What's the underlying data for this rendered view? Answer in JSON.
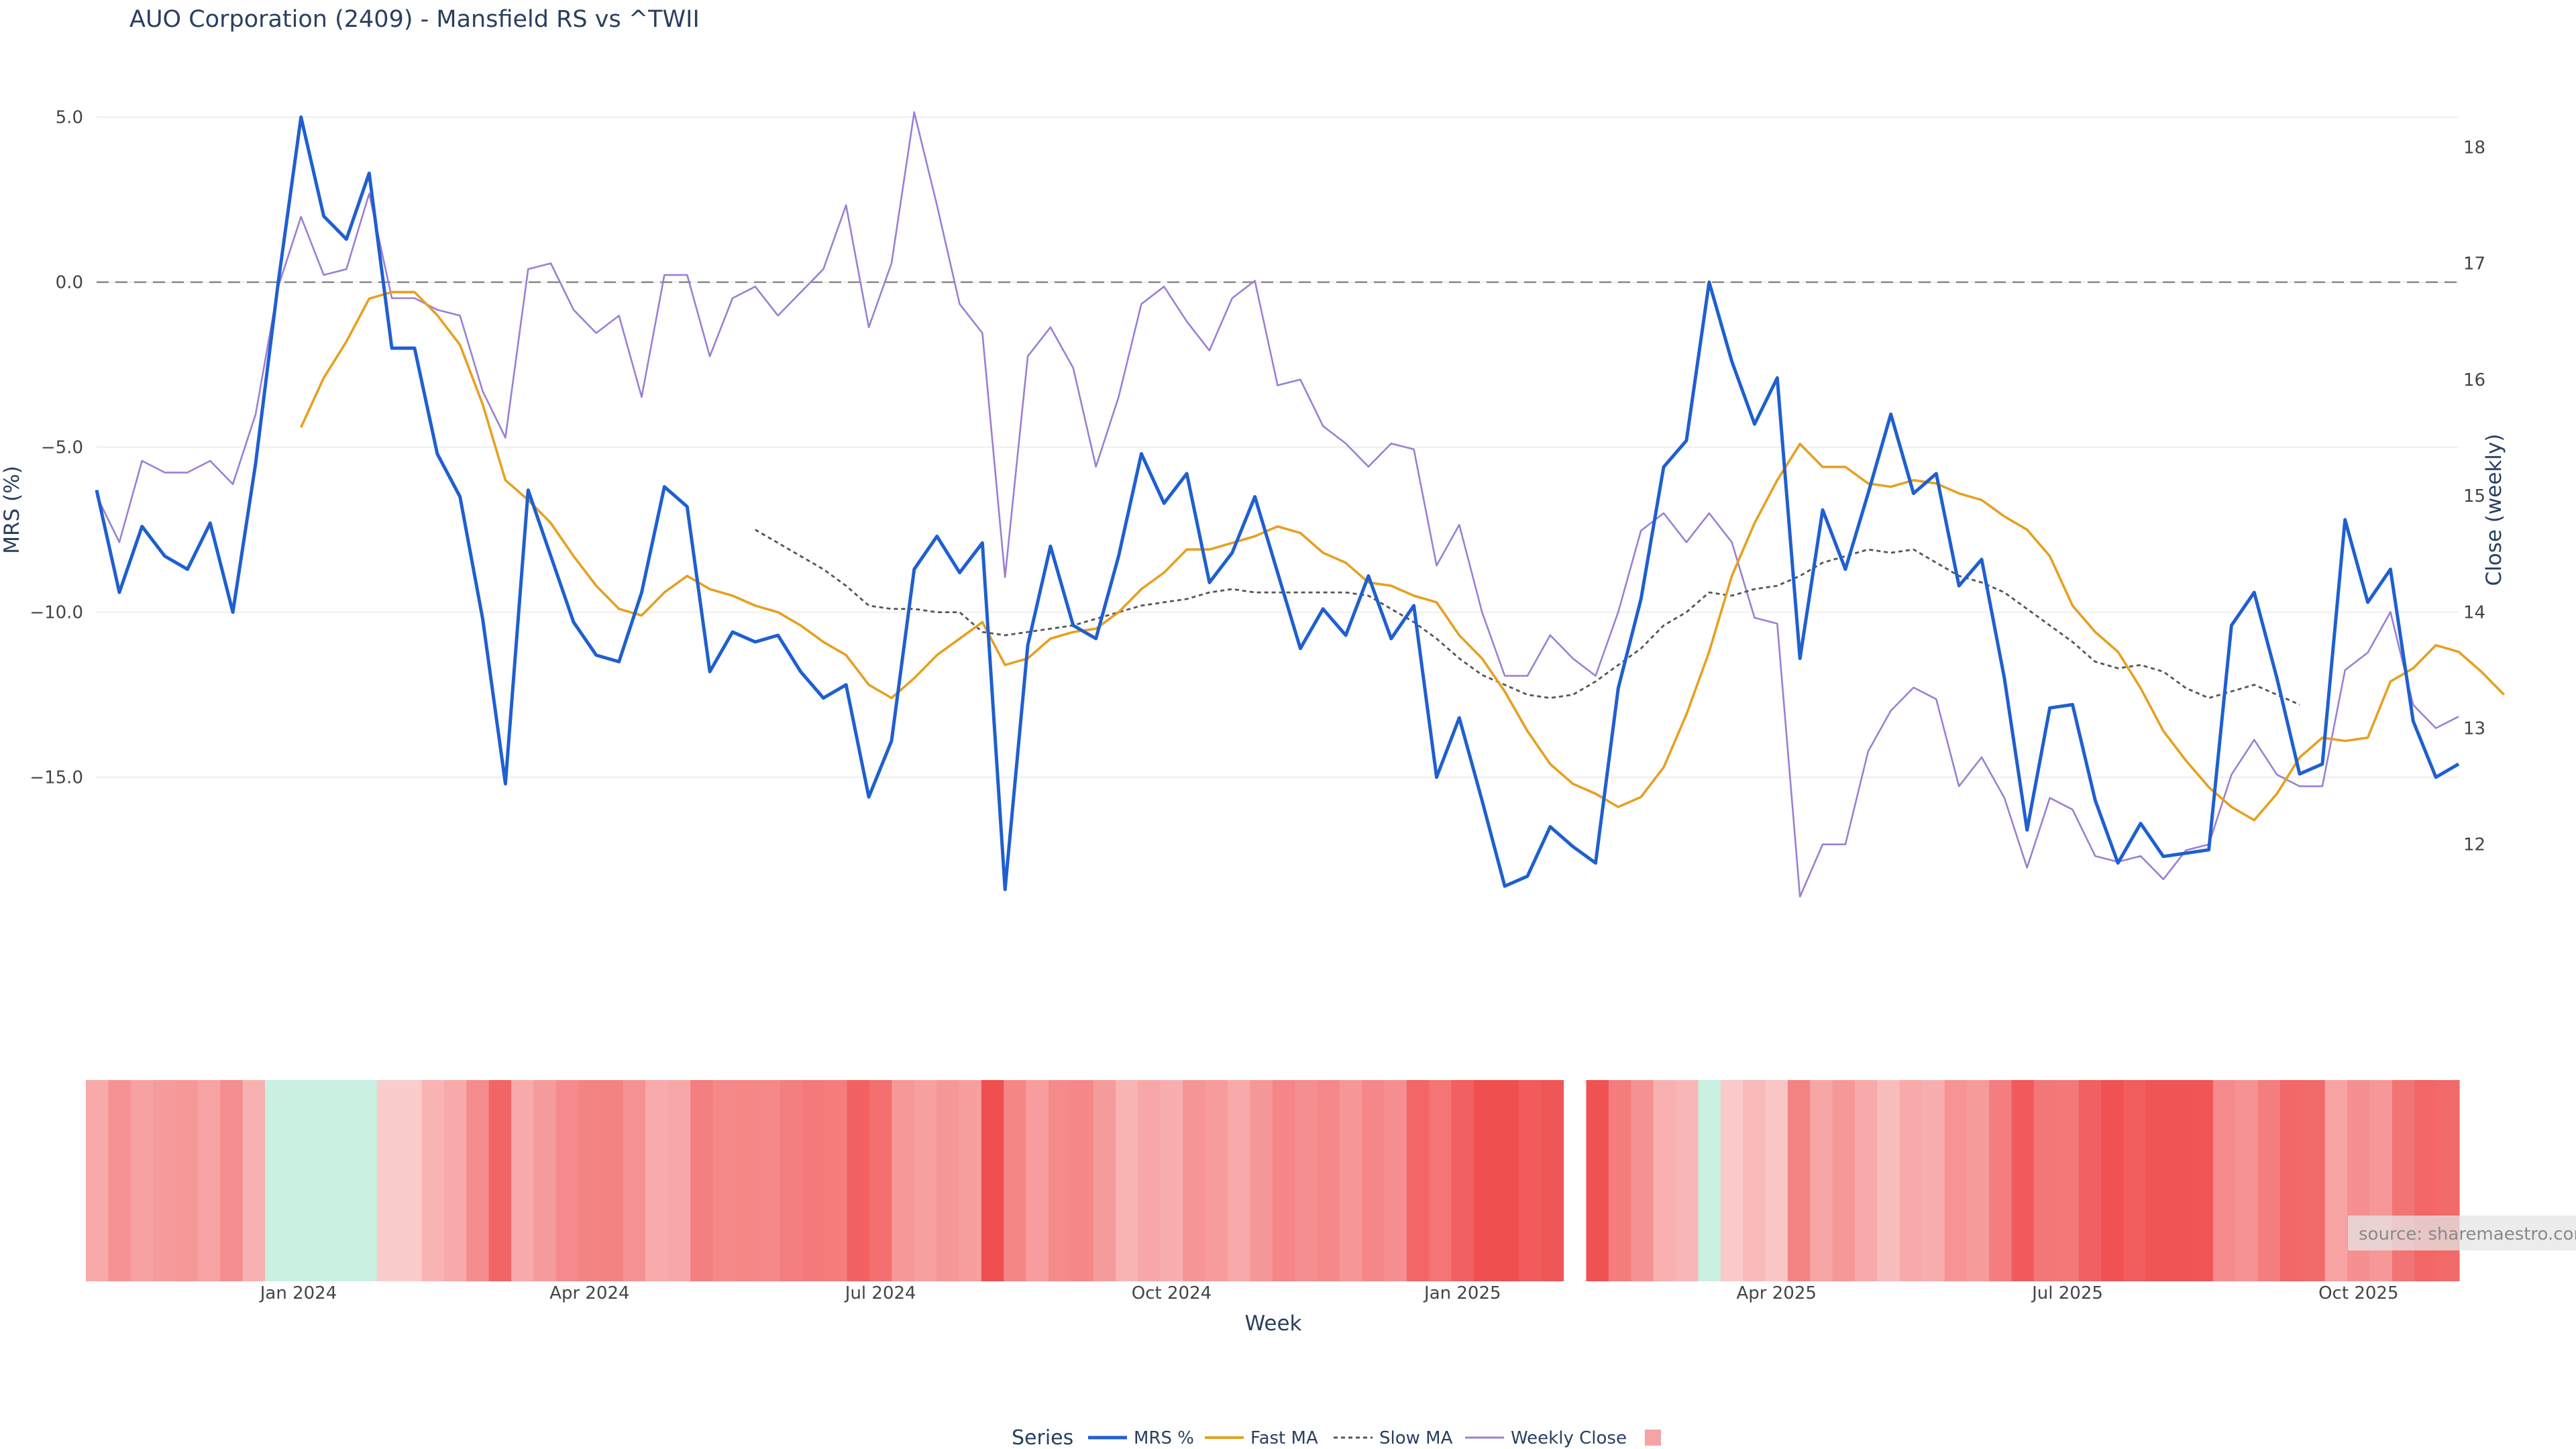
{
  "title": "AUO Corporation (2409) - Mansfield RS vs ^TWII",
  "source_label": "source: sharemaestro.com",
  "legend": {
    "title": "Series",
    "items": [
      "MRS %",
      "Fast MA",
      "Slow MA",
      "Weekly Close",
      ""
    ]
  },
  "colors": {
    "mrs": "#1f5fd0",
    "fast_ma": "#e6a020",
    "slow_ma": "#555555",
    "weekly_close": "#9b7fd4",
    "zero_line": "#888888"
  },
  "chart_data": {
    "type": "line",
    "title": "AUO Corporation (2409) - Mansfield RS vs ^TWII",
    "xlabel": "Week",
    "ylabel": "MRS (%)",
    "y2label": "Close (weekly)",
    "ylim": [
      -19.5,
      5.5
    ],
    "y2lim": [
      11.3,
      18.4
    ],
    "yticks": [
      5,
      0,
      -5,
      -10,
      -15
    ],
    "ytick_labels": [
      "5.0",
      "0.0",
      "−5.0",
      "−10.0",
      "−15.0"
    ],
    "y2ticks": [
      18,
      17,
      16,
      15,
      14,
      13,
      12
    ],
    "y2tick_labels": [
      "18",
      "17",
      "16",
      "15",
      "14",
      "13",
      "12"
    ],
    "x_tick_positions": [
      9,
      22,
      35,
      48,
      61,
      74,
      87,
      100
    ],
    "x_tick_labels": [
      "Jan 2024",
      "Apr 2024",
      "Jul 2024",
      "Oct 2024",
      "Jan 2025",
      "Apr 2025",
      "Jul 2025",
      "Oct 2025"
    ],
    "zero_line": 0,
    "series": [
      {
        "name": "MRS %",
        "axis": "left",
        "values": [
          -6.3,
          -9.4,
          -7.4,
          -8.3,
          -8.7,
          -7.3,
          -10.0,
          -5.5,
          0.0,
          5.0,
          2.0,
          1.3,
          3.3,
          -2.0,
          -2.0,
          -5.2,
          -6.5,
          -10.2,
          -15.2,
          -6.3,
          -8.3,
          -10.3,
          -11.3,
          -11.5,
          -9.4,
          -6.2,
          -6.8,
          -11.8,
          -10.6,
          -10.9,
          -10.7,
          -11.8,
          -12.6,
          -12.2,
          -15.6,
          -13.9,
          -8.7,
          -7.7,
          -8.8,
          -7.9,
          -18.4,
          -11.0,
          -8.0,
          -10.4,
          -10.8,
          -8.3,
          -5.2,
          -6.7,
          -5.8,
          -9.1,
          -8.2,
          -6.5,
          -8.8,
          -11.1,
          -9.9,
          -10.7,
          -8.9,
          -10.8,
          -9.8,
          -15.0,
          -13.2,
          -15.7,
          -18.3,
          -18.0,
          -16.5,
          -17.1,
          -17.6,
          -12.3,
          -9.6,
          -5.6,
          -4.8,
          0.0,
          -2.4,
          -4.3,
          -2.9,
          -11.4,
          -6.9,
          -8.7,
          -6.4,
          -4.0,
          -6.4,
          -5.8,
          -9.2,
          -8.4,
          -12.0,
          -16.6,
          -12.9,
          -12.8,
          -15.7,
          -17.6,
          -16.4,
          -17.4,
          -17.3,
          -17.2,
          -10.4,
          -9.4,
          -12.0,
          -14.9,
          -14.6,
          -7.2,
          -9.7,
          -8.7,
          -13.3,
          -15.0,
          -14.6
        ]
      },
      {
        "name": "Fast MA",
        "axis": "left",
        "start_index": 9,
        "values": [
          -4.4,
          -2.9,
          -1.8,
          -0.5,
          -0.3,
          -0.3,
          -1.0,
          -1.9,
          -3.7,
          -6.0,
          -6.6,
          -7.3,
          -8.3,
          -9.2,
          -9.9,
          -10.1,
          -9.4,
          -8.9,
          -9.3,
          -9.5,
          -9.8,
          -10.0,
          -10.4,
          -10.9,
          -11.3,
          -12.2,
          -12.6,
          -12.0,
          -11.3,
          -10.8,
          -10.3,
          -11.6,
          -11.4,
          -10.8,
          -10.6,
          -10.5,
          -10.0,
          -9.3,
          -8.8,
          -8.1,
          -8.1,
          -7.9,
          -7.7,
          -7.4,
          -7.6,
          -8.2,
          -8.5,
          -9.1,
          -9.2,
          -9.5,
          -9.7,
          -10.7,
          -11.4,
          -12.4,
          -13.6,
          -14.6,
          -15.2,
          -15.5,
          -15.9,
          -15.6,
          -14.7,
          -13.1,
          -11.2,
          -8.9,
          -7.3,
          -6.0,
          -4.9,
          -5.6,
          -5.6,
          -6.1,
          -6.2,
          -6.0,
          -6.1,
          -6.4,
          -6.6,
          -7.1,
          -7.5,
          -8.3,
          -9.8,
          -10.6,
          -11.2,
          -12.3,
          -13.6,
          -14.5,
          -15.3,
          -15.9,
          -16.3,
          -15.5,
          -14.4,
          -13.8,
          -13.9,
          -13.8,
          -12.1,
          -11.7,
          -11.0,
          -11.2,
          -11.8,
          -12.5
        ]
      },
      {
        "name": "Slow MA",
        "axis": "left",
        "start_index": 29,
        "values": [
          -7.5,
          -7.9,
          -8.3,
          -8.7,
          -9.2,
          -9.8,
          -9.9,
          -9.9,
          -10.0,
          -10.0,
          -10.6,
          -10.7,
          -10.6,
          -10.5,
          -10.4,
          -10.2,
          -10.0,
          -9.8,
          -9.7,
          -9.6,
          -9.4,
          -9.3,
          -9.4,
          -9.4,
          -9.4,
          -9.4,
          -9.4,
          -9.5,
          -9.9,
          -10.3,
          -10.8,
          -11.4,
          -11.9,
          -12.2,
          -12.5,
          -12.6,
          -12.5,
          -12.1,
          -11.6,
          -11.1,
          -10.4,
          -10.0,
          -9.4,
          -9.5,
          -9.3,
          -9.2,
          -8.9,
          -8.5,
          -8.3,
          -8.1,
          -8.2,
          -8.1,
          -8.5,
          -8.9,
          -9.1,
          -9.4,
          -9.9,
          -10.4,
          -10.9,
          -11.5,
          -11.7,
          -11.6,
          -11.8,
          -12.3,
          -12.6,
          -12.4,
          -12.2,
          -12.5,
          -12.8
        ]
      },
      {
        "name": "Weekly Close",
        "axis": "right",
        "values": [
          15.0,
          14.6,
          15.3,
          15.2,
          15.2,
          15.3,
          15.1,
          15.7,
          16.8,
          17.4,
          16.9,
          16.95,
          17.6,
          16.7,
          16.7,
          16.6,
          16.55,
          15.9,
          15.5,
          16.95,
          17.0,
          16.6,
          16.4,
          16.55,
          15.85,
          16.9,
          16.9,
          16.2,
          16.7,
          16.8,
          16.55,
          16.75,
          16.95,
          17.5,
          16.45,
          17.0,
          18.3,
          17.5,
          16.65,
          16.4,
          14.3,
          16.2,
          16.45,
          16.1,
          15.25,
          15.85,
          16.65,
          16.8,
          16.5,
          16.25,
          16.7,
          16.85,
          15.95,
          16.0,
          15.6,
          15.45,
          15.25,
          15.45,
          15.4,
          14.4,
          14.75,
          14.0,
          13.45,
          13.45,
          13.8,
          13.6,
          13.45,
          14.0,
          14.7,
          14.85,
          14.6,
          14.85,
          14.6,
          13.95,
          13.9,
          11.55,
          12.0,
          12.0,
          12.8,
          13.15,
          13.35,
          13.25,
          12.5,
          12.75,
          12.4,
          11.8,
          12.4,
          12.3,
          11.9,
          11.85,
          11.9,
          11.7,
          11.95,
          12.0,
          12.6,
          12.9,
          12.6,
          12.5,
          12.5,
          13.5,
          13.65,
          14.0,
          13.2,
          13.0,
          13.1
        ]
      }
    ],
    "heatmap": {
      "type": "heatmap",
      "row_label": "MRS %",
      "colorscale": [
        "#f04f50",
        "#fbd0d0",
        "#c9f0e1"
      ],
      "gap_after_index": 65
    }
  }
}
